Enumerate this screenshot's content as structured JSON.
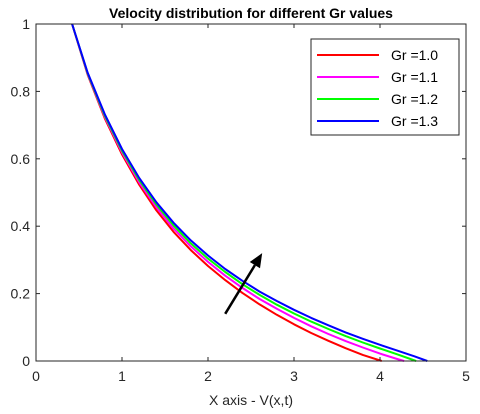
{
  "chart_data": {
    "type": "line",
    "title": "Velocity distribution for different Gr values",
    "xlabel": "X axis - V(x,t)",
    "ylabel": "",
    "xlim": [
      0,
      5
    ],
    "ylim": [
      0,
      1
    ],
    "xticks": [
      "0",
      "1",
      "2",
      "3",
      "4",
      "5"
    ],
    "yticks": [
      "0",
      "0.2",
      "0.4",
      "0.6",
      "0.8",
      "1"
    ],
    "grid": false,
    "legend_position": "top-right",
    "series": [
      {
        "name": "Gr =1.0",
        "color": "#ff0000",
        "x": [
          0.42,
          0.6,
          0.8,
          1.0,
          1.2,
          1.4,
          1.6,
          1.8,
          2.0,
          2.2,
          2.4,
          2.6,
          2.8,
          3.0,
          3.2,
          3.4,
          3.6,
          3.8,
          4.02
        ],
        "y": [
          1.0,
          0.85,
          0.72,
          0.613,
          0.523,
          0.447,
          0.383,
          0.329,
          0.282,
          0.24,
          0.202,
          0.168,
          0.137,
          0.109,
          0.083,
          0.06,
          0.038,
          0.018,
          0.0
        ]
      },
      {
        "name": "Gr =1.1",
        "color": "#ff00ff",
        "x": [
          0.42,
          0.6,
          0.8,
          1.0,
          1.2,
          1.4,
          1.6,
          1.8,
          2.0,
          2.2,
          2.4,
          2.6,
          2.8,
          3.0,
          3.2,
          3.4,
          3.6,
          3.8,
          4.0,
          4.2,
          4.28
        ],
        "y": [
          1.0,
          0.852,
          0.724,
          0.619,
          0.53,
          0.456,
          0.393,
          0.34,
          0.294,
          0.253,
          0.217,
          0.184,
          0.155,
          0.128,
          0.103,
          0.08,
          0.059,
          0.04,
          0.022,
          0.006,
          0.0
        ]
      },
      {
        "name": "Gr =1.2",
        "color": "#00ff00",
        "x": [
          0.42,
          0.6,
          0.8,
          1.0,
          1.2,
          1.4,
          1.6,
          1.8,
          2.0,
          2.2,
          2.4,
          2.6,
          2.8,
          3.0,
          3.2,
          3.4,
          3.6,
          3.8,
          4.0,
          4.2,
          4.42
        ],
        "y": [
          1.0,
          0.854,
          0.728,
          0.624,
          0.537,
          0.464,
          0.402,
          0.349,
          0.304,
          0.264,
          0.228,
          0.196,
          0.167,
          0.141,
          0.117,
          0.095,
          0.074,
          0.055,
          0.037,
          0.02,
          0.0
        ]
      },
      {
        "name": "Gr =1.3",
        "color": "#0000ff",
        "x": [
          0.42,
          0.6,
          0.8,
          1.0,
          1.2,
          1.4,
          1.6,
          1.8,
          2.0,
          2.2,
          2.4,
          2.6,
          2.8,
          3.0,
          3.2,
          3.4,
          3.6,
          3.8,
          4.0,
          4.2,
          4.4,
          4.55
        ],
        "y": [
          1.0,
          0.856,
          0.732,
          0.629,
          0.543,
          0.471,
          0.41,
          0.358,
          0.313,
          0.273,
          0.238,
          0.206,
          0.178,
          0.152,
          0.128,
          0.106,
          0.085,
          0.066,
          0.048,
          0.031,
          0.014,
          0.0
        ]
      }
    ],
    "annotations": [
      {
        "type": "arrow",
        "from": [
          2.2,
          0.14
        ],
        "to": [
          2.63,
          0.32
        ],
        "meaning": "increasing Gr"
      }
    ]
  }
}
